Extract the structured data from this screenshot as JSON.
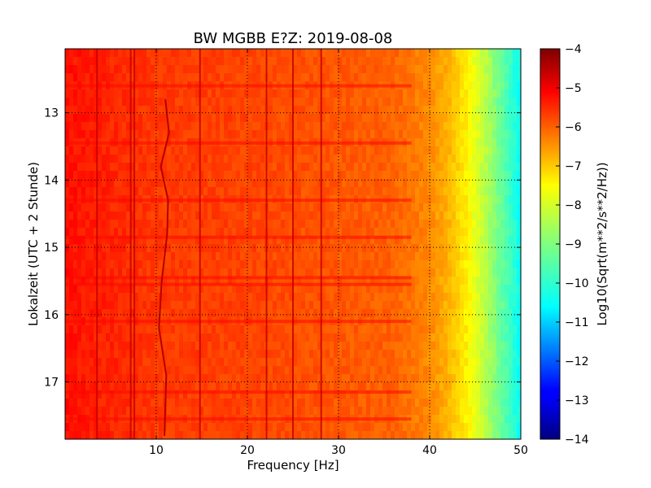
{
  "chart_data": {
    "type": "heatmap",
    "title": "BW MGBB E?Z: 2019-08-08",
    "xlabel": "Frequency [Hz]",
    "ylabel": "Lokalzeit (UTC + 2 Stunde)",
    "xlim": [
      0,
      50
    ],
    "ylim": [
      12.05,
      17.85
    ],
    "y_inverted": true,
    "x_ticks": [
      10,
      20,
      30,
      40,
      50
    ],
    "y_ticks": [
      13,
      14,
      15,
      16,
      17
    ],
    "grid": true,
    "colormap": "jet",
    "colorbar": {
      "label": "Log10(Sqrt(m**2/s**2/Hz))",
      "range": [
        -14,
        -4
      ],
      "ticks": [
        -4,
        -5,
        -6,
        -7,
        -8,
        -9,
        -10,
        -11,
        -12,
        -13,
        -14
      ]
    },
    "spectrum_profile": [
      {
        "freq": 0,
        "value": -5.4
      },
      {
        "freq": 5,
        "value": -5.6
      },
      {
        "freq": 10,
        "value": -5.8
      },
      {
        "freq": 20,
        "value": -5.9
      },
      {
        "freq": 30,
        "value": -6.1
      },
      {
        "freq": 36,
        "value": -6.2
      },
      {
        "freq": 40,
        "value": -6.6
      },
      {
        "freq": 42,
        "value": -7.0
      },
      {
        "freq": 44,
        "value": -7.6
      },
      {
        "freq": 46,
        "value": -8.4
      },
      {
        "freq": 48,
        "value": -9.3
      },
      {
        "freq": 50,
        "value": -10.2
      }
    ],
    "persistent_lines_hz": [
      3.5,
      7.2,
      7.6,
      14.8,
      22.1,
      25.0,
      28.1
    ],
    "wandering_line": [
      {
        "time": 12.8,
        "freq": 11.0
      },
      {
        "time": 13.3,
        "freq": 11.4
      },
      {
        "time": 13.8,
        "freq": 10.5
      },
      {
        "time": 14.3,
        "freq": 11.3
      },
      {
        "time": 14.8,
        "freq": 11.2
      },
      {
        "time": 15.5,
        "freq": 10.6
      },
      {
        "time": 16.2,
        "freq": 10.3
      },
      {
        "time": 16.9,
        "freq": 11.1
      },
      {
        "time": 17.8,
        "freq": 10.9
      }
    ],
    "broadband_events_h": [
      12.6,
      13.45,
      14.3,
      14.85,
      15.45,
      15.55,
      16.1,
      17.15,
      17.55
    ]
  }
}
